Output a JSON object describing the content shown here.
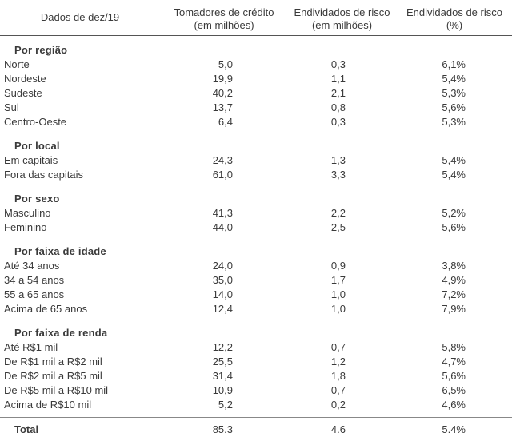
{
  "header": {
    "col0": "Dados de dez/19",
    "col1_l1": "Tomadores de crédito",
    "col1_l2": "(em milhões)",
    "col2_l1": "Endividados de risco",
    "col2_l2": "(em milhões)",
    "col3_l1": "Endividados de risco",
    "col3_l2": "(%)"
  },
  "sections": [
    {
      "title": "Por região",
      "rows": [
        {
          "label": "Norte",
          "v1": "5,0",
          "v2": "0,3",
          "v3": "6,1%"
        },
        {
          "label": "Nordeste",
          "v1": "19,9",
          "v2": "1,1",
          "v3": "5,4%"
        },
        {
          "label": "Sudeste",
          "v1": "40,2",
          "v2": "2,1",
          "v3": "5,3%"
        },
        {
          "label": "Sul",
          "v1": "13,7",
          "v2": "0,8",
          "v3": "5,6%"
        },
        {
          "label": "Centro-Oeste",
          "v1": "6,4",
          "v2": "0,3",
          "v3": "5,3%"
        }
      ]
    },
    {
      "title": "Por local",
      "rows": [
        {
          "label": "Em capitais",
          "v1": "24,3",
          "v2": "1,3",
          "v3": "5,4%"
        },
        {
          "label": "Fora das capitais",
          "v1": "61,0",
          "v2": "3,3",
          "v3": "5,4%"
        }
      ]
    },
    {
      "title": "Por sexo",
      "rows": [
        {
          "label": "Masculino",
          "v1": "41,3",
          "v2": "2,2",
          "v3": "5,2%"
        },
        {
          "label": "Feminino",
          "v1": "44,0",
          "v2": "2,5",
          "v3": "5,6%"
        }
      ]
    },
    {
      "title": "Por faixa de idade",
      "rows": [
        {
          "label": "Até 34 anos",
          "v1": "24,0",
          "v2": "0,9",
          "v3": "3,8%"
        },
        {
          "label": "34 a 54 anos",
          "v1": "35,0",
          "v2": "1,7",
          "v3": "4,9%"
        },
        {
          "label": "55 a 65 anos",
          "v1": "14,0",
          "v2": "1,0",
          "v3": "7,2%"
        },
        {
          "label": "Acima de 65 anos",
          "v1": "12,4",
          "v2": "1,0",
          "v3": "7,9%"
        }
      ]
    },
    {
      "title": "Por faixa de renda",
      "rows": [
        {
          "label": "Até R$1 mil",
          "v1": "12,2",
          "v2": "0,7",
          "v3": "5,8%"
        },
        {
          "label": "De R$1 mil a R$2 mil",
          "v1": "25,5",
          "v2": "1,2",
          "v3": "4,7%"
        },
        {
          "label": "De R$2 mil a R$5 mil",
          "v1": "31,4",
          "v2": "1,8",
          "v3": "5,6%"
        },
        {
          "label": "De R$5 mil a R$10 mil",
          "v1": "10,9",
          "v2": "0,7",
          "v3": "6,5%"
        },
        {
          "label": "Acima de R$10 mil",
          "v1": "5,2",
          "v2": "0,2",
          "v3": "4,6%"
        }
      ]
    }
  ],
  "total": {
    "label": "Total",
    "v1": "85.3",
    "v2": "4.6",
    "v3": "5.4%"
  }
}
